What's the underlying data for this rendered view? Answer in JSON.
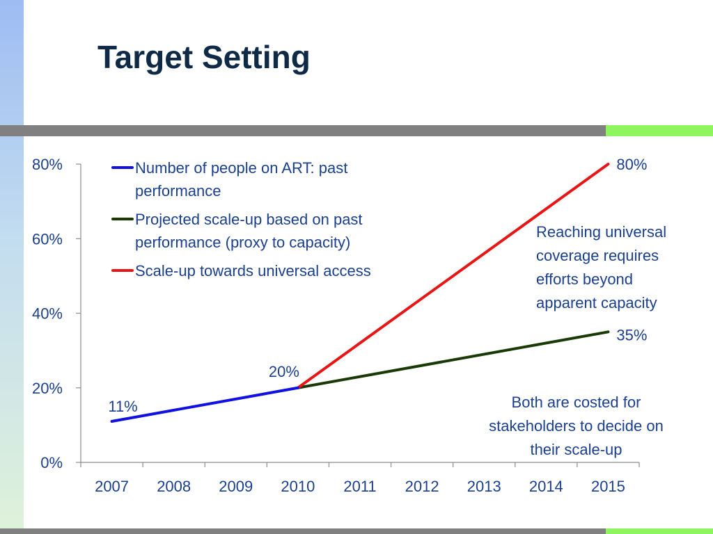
{
  "slide": {
    "title": "Target Setting"
  },
  "colors": {
    "past_performance": "#1010e0",
    "projected": "#1a3a05",
    "universal_access": "#e81515",
    "text": "#1a3f8f",
    "title": "#0e2a47"
  },
  "annotations": {
    "reaching_universal": "Reaching universal coverage requires efforts beyond apparent capacity",
    "costed": "Both are costed for stakeholders to decide on their scale-up"
  },
  "chart_data": {
    "type": "line",
    "title": "",
    "xlabel": "",
    "ylabel": "",
    "categories": [
      "2007",
      "2008",
      "2009",
      "2010",
      "2011",
      "2012",
      "2013",
      "2014",
      "2015"
    ],
    "y_ticks": [
      "0%",
      "20%",
      "40%",
      "60%",
      "80%"
    ],
    "ylim": [
      0,
      80
    ],
    "grid": false,
    "legend_position": "top-left",
    "series": [
      {
        "name": "Number of people on ART: past performance",
        "color_key": "past_performance",
        "x": [
          "2007",
          "2010"
        ],
        "values": [
          11,
          20
        ]
      },
      {
        "name": "Projected scale-up based on past performance (proxy to capacity)",
        "color_key": "projected",
        "x": [
          "2010",
          "2015"
        ],
        "values": [
          20,
          35
        ]
      },
      {
        "name": "Scale-up towards universal access",
        "color_key": "universal_access",
        "x": [
          "2010",
          "2015"
        ],
        "values": [
          20,
          80
        ]
      }
    ],
    "data_labels": [
      {
        "text": "11%",
        "x": "2007",
        "y": 11
      },
      {
        "text": "20%",
        "x": "2010",
        "y": 20
      },
      {
        "text": "80%",
        "x": "2015",
        "y": 80
      },
      {
        "text": "35%",
        "x": "2015",
        "y": 35
      }
    ]
  }
}
